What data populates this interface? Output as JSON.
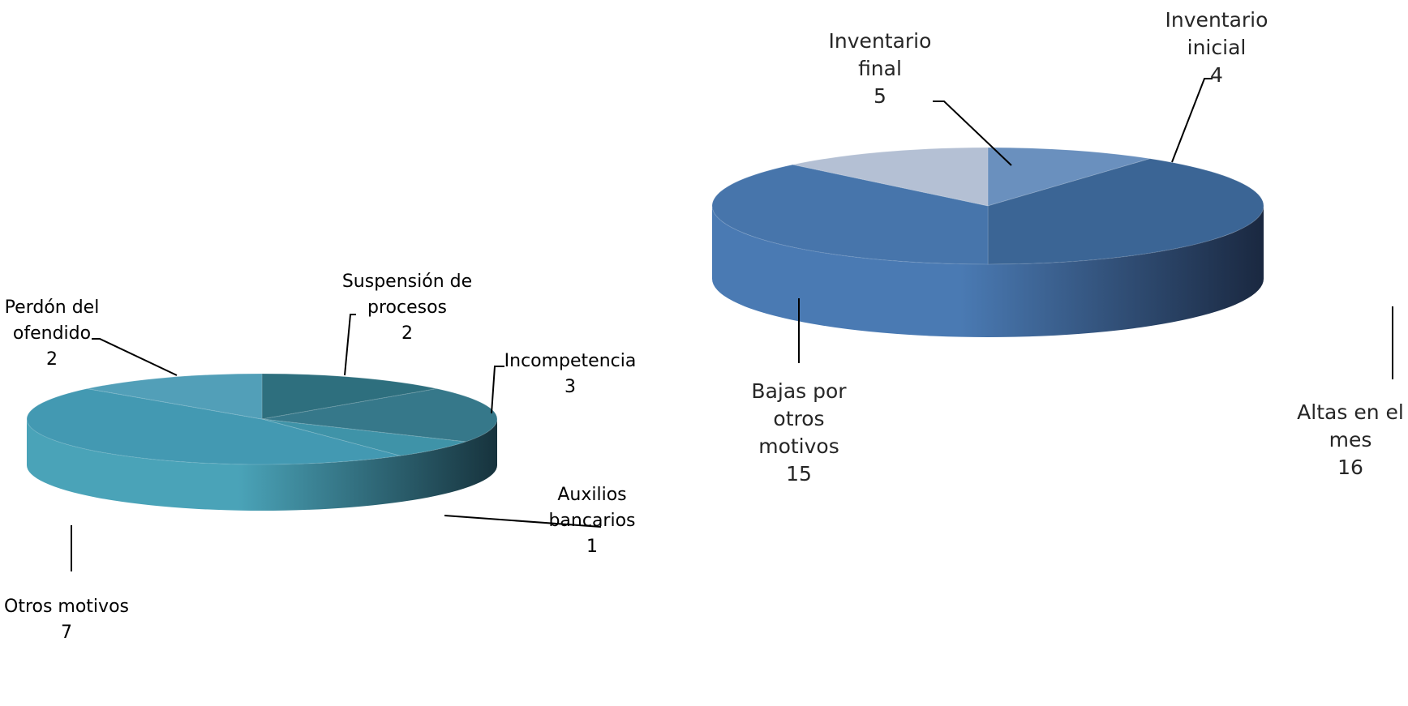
{
  "chart_data": [
    {
      "type": "pie",
      "title": "",
      "series": [
        {
          "labels": [
            "Suspensión de procesos",
            "Incompetencia",
            "Auxilios bancarios",
            "Otros motivos",
            "Perdón del ofendido"
          ],
          "values": [
            2,
            3,
            1,
            7,
            2
          ]
        }
      ],
      "data_labels": [
        {
          "lines": [
            "Suspensión de",
            "procesos"
          ],
          "value": "2"
        },
        {
          "lines": [
            "Incompetencia"
          ],
          "value": "3"
        },
        {
          "lines": [
            "Auxilios",
            "bancarios"
          ],
          "value": "1"
        },
        {
          "lines": [
            "Otros motivos"
          ],
          "value": "7"
        },
        {
          "lines": [
            "Perdón del",
            "ofendido"
          ],
          "value": "2"
        }
      ],
      "colors": {
        "top": [
          "#2e6f7e",
          "#36788a",
          "#3f93a8",
          "#4399b2",
          "#529fb8"
        ],
        "side_light": "#4aa3b8",
        "side_dark": "#17333d"
      }
    },
    {
      "type": "pie",
      "title": "",
      "series": [
        {
          "labels": [
            "Inventario inicial",
            "Altas en el mes",
            "Bajas por otros motivos",
            "Inventario final"
          ],
          "values": [
            4,
            16,
            15,
            5
          ]
        }
      ],
      "data_labels": [
        {
          "lines": [
            "Inventario",
            "inicial"
          ],
          "value": "4"
        },
        {
          "lines": [
            "Altas en el",
            "mes"
          ],
          "value": "16"
        },
        {
          "lines": [
            "Bajas por",
            "otros",
            "motivos"
          ],
          "value": "15"
        },
        {
          "lines": [
            "Inventario",
            "final"
          ],
          "value": "5"
        }
      ],
      "colors": {
        "top": [
          "#6a90be",
          "#3b6595",
          "#4775ab",
          "#b4c0d4"
        ],
        "side_light": "#4a7ab3",
        "side_dark": "#1a2840"
      }
    }
  ]
}
